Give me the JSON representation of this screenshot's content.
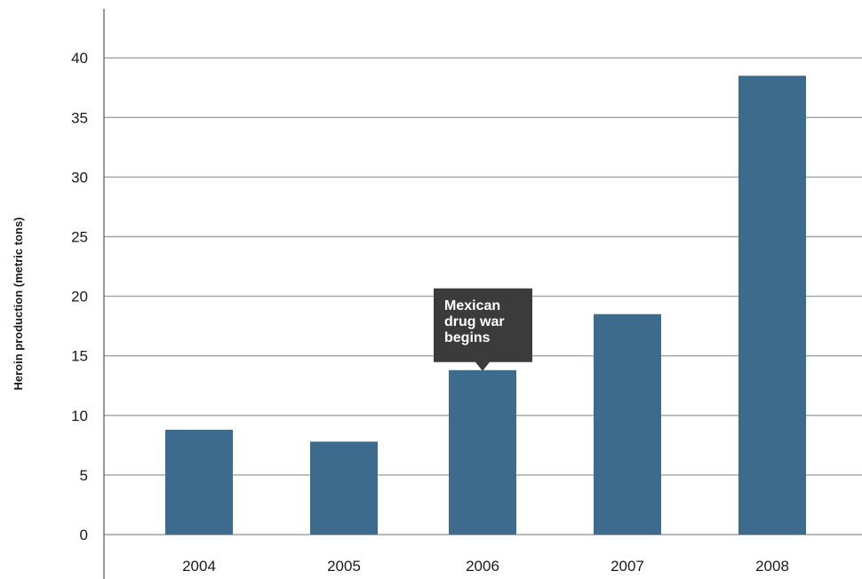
{
  "chart_data": {
    "type": "bar",
    "title": "",
    "xlabel": "",
    "ylabel": "Heroin production (metric tons)",
    "categories": [
      "2004",
      "2005",
      "2006",
      "2007",
      "2008"
    ],
    "values": [
      8.8,
      7.8,
      13.8,
      18.5,
      38.5
    ],
    "ylim": [
      0,
      45
    ],
    "yticks": [
      "0",
      "5",
      "10",
      "15",
      "20",
      "25",
      "30",
      "35",
      "40"
    ],
    "grid": true,
    "bar_color": "#3c6b8e",
    "annotation": {
      "category": "2006",
      "lines": [
        "Mexican",
        "drug war",
        "begins"
      ],
      "background": "#3b3b3b"
    }
  }
}
